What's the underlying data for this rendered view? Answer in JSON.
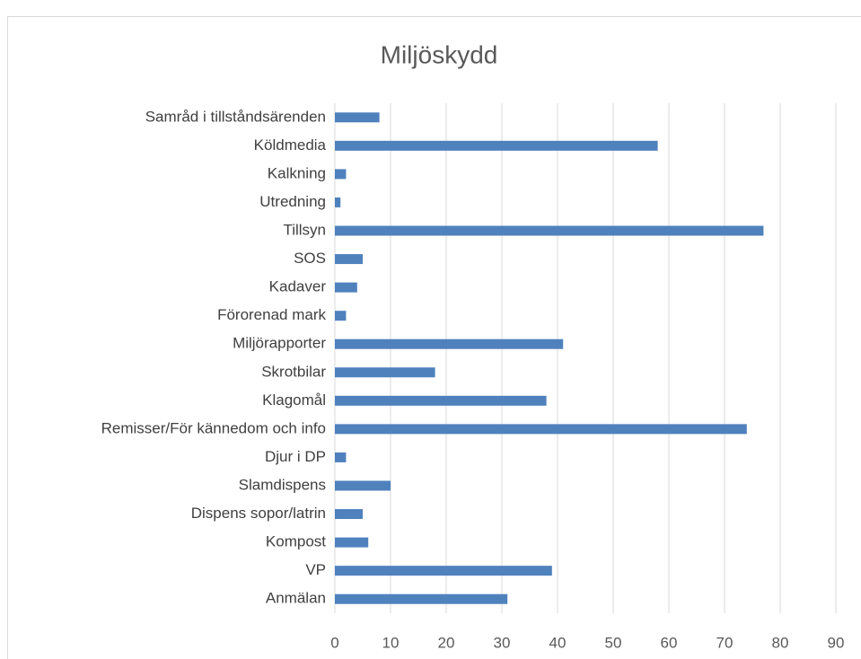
{
  "chart_data": {
    "type": "bar",
    "orientation": "horizontal",
    "title": "Miljöskydd",
    "categories": [
      "Samråd i tillståndsärenden",
      "Köldmedia",
      "Kalkning",
      "Utredning",
      "Tillsyn",
      "SOS",
      "Kadaver",
      "Förorenad mark",
      "Miljörapporter",
      "Skrotbilar",
      "Klagomål",
      "Remisser/För kännedom och info",
      "Djur i DP",
      "Slamdispens",
      "Dispens sopor/latrin",
      "Kompost",
      "VP",
      "Anmälan"
    ],
    "values": [
      8,
      58,
      2,
      1,
      77,
      5,
      4,
      2,
      41,
      18,
      38,
      74,
      2,
      10,
      5,
      6,
      39,
      31
    ],
    "color": "#4f81bd",
    "xlim": [
      0,
      90
    ],
    "xticks": [
      0,
      10,
      20,
      30,
      40,
      50,
      60,
      70,
      80,
      90
    ],
    "grid": true
  }
}
